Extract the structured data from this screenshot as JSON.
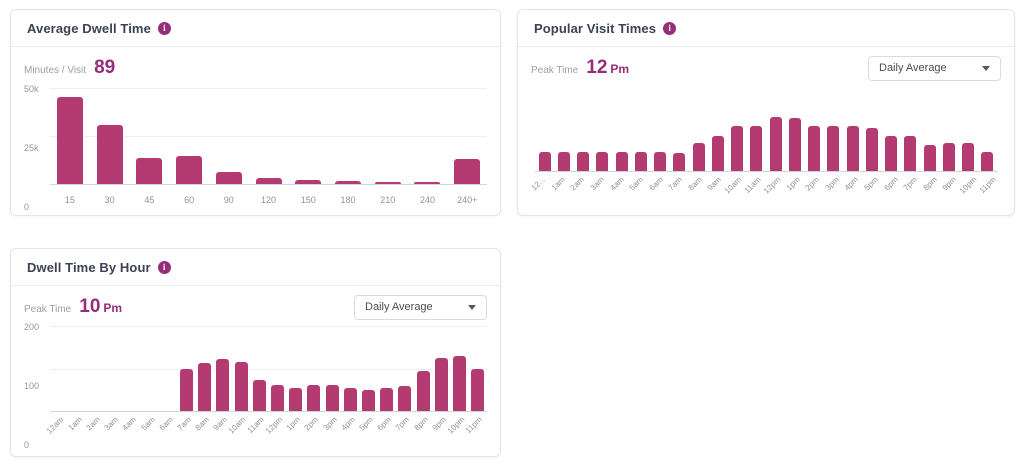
{
  "colors": {
    "bar": "#b43a72",
    "accent": "#962d79",
    "title_text": "#3d4155",
    "label_gray": "#9da0a8",
    "panel_border": "#e3e4e6",
    "baseline": "#ccd5e2"
  },
  "panels": {
    "average_dwell_time": {
      "title": "Average Dwell Time",
      "metric_label": "Minutes / Visit",
      "metric_value": "89",
      "metric_suffix": ""
    },
    "popular_visit_times": {
      "title": "Popular Visit Times",
      "metric_label": "Peak Time",
      "metric_value": "12",
      "metric_suffix": "Pm",
      "dropdown_value": "Daily Average"
    },
    "dwell_time_by_hour": {
      "title": "Dwell Time By Hour",
      "metric_label": "Peak Time",
      "metric_value": "10",
      "metric_suffix": "Pm",
      "dropdown_value": "Daily Average"
    }
  },
  "chart_data": [
    {
      "type": "bar",
      "title": "Average Dwell Time",
      "xlabel": "",
      "ylabel": "",
      "categories": [
        "15",
        "30",
        "45",
        "60",
        "90",
        "120",
        "150",
        "180",
        "210",
        "240",
        "240+"
      ],
      "values": [
        45500,
        30500,
        13500,
        14500,
        6500,
        3000,
        2000,
        1500,
        1200,
        800,
        12800
      ],
      "yticks": [
        "50k",
        "25k",
        "0"
      ],
      "ylim": [
        0,
        50000
      ],
      "ymax": 50000,
      "grid": true,
      "legend": false
    },
    {
      "type": "bar",
      "title": "Popular Visit Times",
      "xlabel": "",
      "ylabel": "",
      "categories": [
        "12...",
        "1am",
        "2am",
        "3am",
        "4am",
        "5am",
        "6am",
        "7am",
        "8am",
        "9am",
        "10am",
        "11am",
        "12pm",
        "1pm",
        "2pm",
        "3pm",
        "4pm",
        "5pm",
        "6pm",
        "7pm",
        "8pm",
        "9pm",
        "10pm",
        "11pm"
      ],
      "values": [
        35,
        35,
        35,
        35,
        35,
        35,
        35,
        34,
        52,
        66,
        83,
        84,
        100,
        98,
        83,
        83,
        83,
        81,
        66,
        65,
        49,
        52,
        52,
        35
      ],
      "note": "relative heights, no y-axis shown; peak at 12pm",
      "ylim": [
        0,
        110
      ],
      "ymax": 110,
      "grid": false,
      "legend": false
    },
    {
      "type": "bar",
      "title": "Dwell Time By Hour",
      "xlabel": "",
      "ylabel": "",
      "categories": [
        "12am",
        "1am",
        "2am",
        "3am",
        "4am",
        "5am",
        "6am",
        "7am",
        "8am",
        "9am",
        "10am",
        "11am",
        "12pm",
        "1pm",
        "2pm",
        "3pm",
        "4pm",
        "5pm",
        "6pm",
        "7pm",
        "8pm",
        "9pm",
        "10pm",
        "11pm"
      ],
      "values": [
        0,
        0,
        0,
        0,
        0,
        0,
        0,
        100,
        113,
        122,
        115,
        73,
        62,
        55,
        62,
        61,
        55,
        49,
        55,
        60,
        95,
        125,
        129,
        100
      ],
      "yticks": [
        "200",
        "100",
        "0"
      ],
      "ylim": [
        0,
        200
      ],
      "ymax": 200,
      "grid": true,
      "legend": false
    }
  ]
}
